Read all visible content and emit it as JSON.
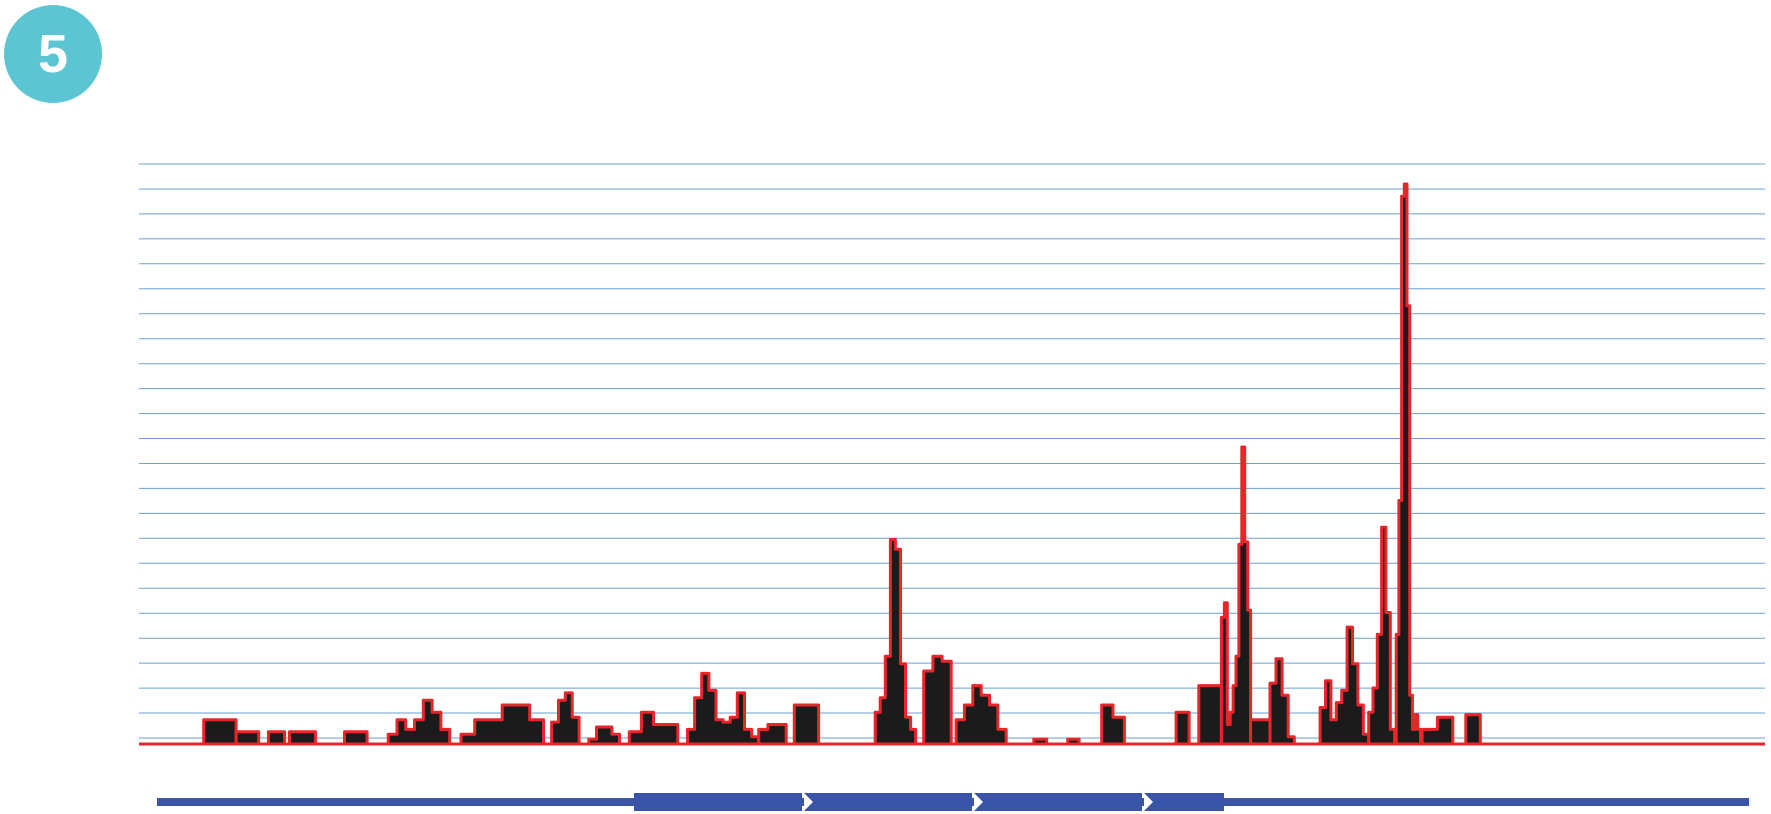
{
  "badge": {
    "label": "5",
    "color": "#5bc5d4"
  },
  "colors": {
    "grid": "#6a9fd6",
    "fill": "#1b1b1b",
    "outline": "#e8262a",
    "gene": "#3a55a8"
  },
  "chart_data": {
    "type": "area",
    "title": "",
    "xlabel": "",
    "ylabel": "",
    "grid": true,
    "gridline_count": 24,
    "xlim": [
      0,
      1000
    ],
    "ylim": [
      0,
      23
    ],
    "peaks": [
      {
        "x0": 40,
        "x1": 60,
        "steps": [
          1.0,
          1.0
        ]
      },
      {
        "x0": 60,
        "x1": 74,
        "steps": [
          0.5
        ]
      },
      {
        "x0": 80,
        "x1": 90,
        "steps": [
          0.5
        ]
      },
      {
        "x0": 93,
        "x1": 109,
        "steps": [
          0.5
        ]
      },
      {
        "x0": 127,
        "x1": 141,
        "steps": [
          0.5
        ]
      },
      {
        "x0": 154,
        "x1": 192,
        "steps": [
          0.4,
          1.0,
          0.6,
          1.0,
          1.8,
          1.3,
          0.6
        ]
      },
      {
        "x0": 199,
        "x1": 250,
        "steps": [
          0.4,
          1.0,
          1.0,
          1.6,
          1.6,
          1.0
        ]
      },
      {
        "x0": 255,
        "x1": 272,
        "steps": [
          0.9,
          1.8,
          2.1,
          1.1
        ]
      },
      {
        "x0": 278,
        "x1": 297,
        "steps": [
          0.2,
          0.7,
          0.7,
          0.4
        ]
      },
      {
        "x0": 303,
        "x1": 333,
        "steps": [
          0.5,
          1.3,
          0.8,
          0.8
        ]
      },
      {
        "x0": 339,
        "x1": 383,
        "steps": [
          0.6,
          1.9,
          2.9,
          2.2,
          1.0,
          0.9,
          1.1,
          2.1,
          0.6,
          0.3
        ]
      },
      {
        "x0": 383,
        "x1": 400,
        "steps": [
          0.6,
          0.8,
          0.8
        ]
      },
      {
        "x0": 405,
        "x1": 420,
        "steps": [
          1.6,
          1.6
        ]
      },
      {
        "x0": 455,
        "x1": 480,
        "steps": [
          1.3,
          1.9,
          3.6,
          8.4,
          8.0,
          3.3,
          1.1,
          0.6
        ]
      },
      {
        "x0": 485,
        "x1": 502,
        "steps": [
          3.0,
          3.6,
          3.4
        ]
      },
      {
        "x0": 505,
        "x1": 536,
        "steps": [
          1.0,
          1.6,
          2.4,
          2.0,
          1.6,
          0.6
        ]
      },
      {
        "x0": 553,
        "x1": 561,
        "steps": [
          0.2
        ]
      },
      {
        "x0": 574,
        "x1": 581,
        "steps": [
          0.2
        ]
      },
      {
        "x0": 595,
        "x1": 609,
        "steps": [
          1.6,
          1.1
        ]
      },
      {
        "x0": 641,
        "x1": 649,
        "steps": [
          1.3
        ]
      },
      {
        "x0": 655,
        "x1": 669,
        "steps": [
          2.4
        ]
      },
      {
        "x0": 669,
        "x1": 687,
        "steps": [
          5.2,
          5.8,
          0.8,
          1.3,
          2.4,
          3.6,
          8.2,
          12.2,
          8.3,
          5.5
        ]
      },
      {
        "x0": 687,
        "x1": 699,
        "steps": [
          1.0,
          1.0
        ]
      },
      {
        "x0": 699,
        "x1": 714,
        "steps": [
          2.5,
          3.5,
          2.0,
          0.3
        ]
      },
      {
        "x0": 730,
        "x1": 760,
        "steps": [
          1.5,
          2.6,
          1.0,
          1.7,
          2.2,
          4.8,
          3.3,
          1.6,
          0.4
        ]
      },
      {
        "x0": 760,
        "x1": 776,
        "steps": [
          1.3,
          2.3,
          4.5,
          8.9,
          5.4,
          0.6
        ]
      },
      {
        "x0": 777,
        "x1": 792,
        "steps": [
          4.5,
          10.0,
          22.5,
          23.0,
          18.0,
          2.0,
          0.6,
          1.2,
          0.6
        ]
      },
      {
        "x0": 793,
        "x1": 812,
        "steps": [
          0.6,
          0.6,
          1.1,
          1.1
        ]
      },
      {
        "x0": 820,
        "x1": 829,
        "steps": [
          1.2
        ]
      }
    ]
  },
  "gene_model": {
    "segments": 4,
    "direction": "forward"
  }
}
